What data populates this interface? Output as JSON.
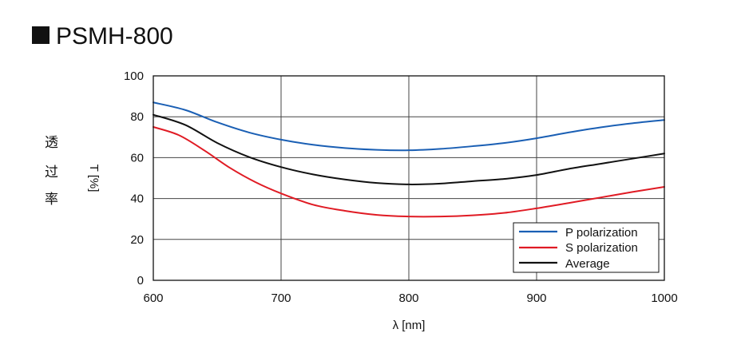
{
  "chart_data": {
    "type": "line",
    "title": "PSMH-800",
    "xlabel": "λ [nm]",
    "ylabel_cjk": [
      "透",
      "过",
      "率"
    ],
    "ylabel": "T [%]",
    "xlim": [
      600,
      1000
    ],
    "ylim": [
      0,
      100
    ],
    "x_ticks": [
      600,
      700,
      800,
      900,
      1000
    ],
    "y_ticks": [
      0,
      20,
      40,
      60,
      80,
      100
    ],
    "grid": true,
    "legend_position": "bottom-right",
    "series": [
      {
        "name": "P polarization",
        "color": "#1a5fb4",
        "x": [
          600,
          625,
          650,
          675,
          700,
          725,
          750,
          775,
          800,
          825,
          850,
          875,
          900,
          925,
          950,
          975,
          1000
        ],
        "y": [
          87,
          83.3,
          77.3,
          72.3,
          68.8,
          66.3,
          64.7,
          63.8,
          63.6,
          64.3,
          65.6,
          67.2,
          69.5,
          72.3,
          74.8,
          76.8,
          78.4
        ]
      },
      {
        "name": "S polarization",
        "color": "#e01b24",
        "x": [
          600,
          620,
          640,
          660,
          680,
          700,
          725,
          750,
          775,
          800,
          825,
          850,
          875,
          900,
          925,
          950,
          975,
          1000
        ],
        "y": [
          75,
          71,
          63.5,
          55,
          48,
          42.5,
          37,
          34,
          32,
          31.2,
          31.2,
          31.8,
          33,
          35.2,
          37.8,
          40.5,
          43.2,
          45.7
        ]
      },
      {
        "name": "Average",
        "color": "#111111",
        "x": [
          600,
          625,
          650,
          675,
          700,
          725,
          750,
          775,
          800,
          825,
          850,
          875,
          900,
          925,
          950,
          975,
          1000
        ],
        "y": [
          81,
          76,
          67.2,
          60.3,
          55.4,
          51.8,
          49.3,
          47.6,
          46.9,
          47.3,
          48.5,
          49.6,
          51.5,
          54.5,
          57,
          59.5,
          62
        ]
      }
    ]
  }
}
